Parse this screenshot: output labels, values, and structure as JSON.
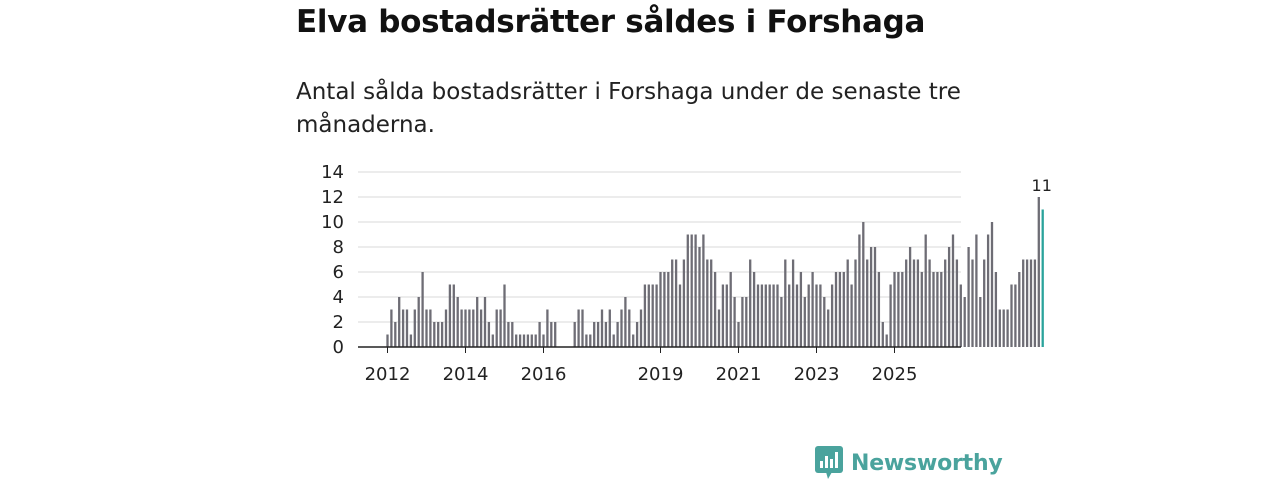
{
  "title": "Elva bostadsrätter såldes i Forshaga",
  "subtitle": "Antal sålda bostadsrätter i Forshaga under de senaste tre månaderna.",
  "brand": {
    "name": "Newsworthy",
    "color": "#4aa39d"
  },
  "chart_data": {
    "type": "bar",
    "title": "",
    "xlabel": "",
    "ylabel": "",
    "ylim": [
      0,
      14
    ],
    "yticks": [
      "0",
      "2",
      "4",
      "6",
      "8",
      "10",
      "12",
      "14"
    ],
    "xticks": [
      {
        "label": "2012",
        "index": 0
      },
      {
        "label": "2014",
        "index": 20
      },
      {
        "label": "2016",
        "index": 40
      },
      {
        "label": "2019",
        "index": 70
      },
      {
        "label": "2021",
        "index": 90
      },
      {
        "label": "2023",
        "index": 110
      },
      {
        "label": "2025",
        "index": 130
      }
    ],
    "colors": {
      "bar": "#6e6d75",
      "highlight": "#2aa39b",
      "grid": "#d9d9d9",
      "axis": "#222222"
    },
    "highlight_label": "11",
    "values": [
      1,
      3,
      2,
      4,
      3,
      3,
      1,
      3,
      4,
      6,
      3,
      3,
      2,
      2,
      2,
      3,
      5,
      5,
      4,
      3,
      3,
      3,
      3,
      4,
      3,
      4,
      2,
      1,
      3,
      3,
      5,
      2,
      2,
      1,
      1,
      1,
      1,
      1,
      1,
      2,
      1,
      3,
      2,
      2,
      0,
      0,
      0,
      0,
      2,
      3,
      3,
      1,
      1,
      2,
      2,
      3,
      2,
      3,
      1,
      2,
      3,
      4,
      3,
      1,
      2,
      3,
      5,
      5,
      5,
      5,
      6,
      6,
      6,
      7,
      7,
      5,
      7,
      9,
      9,
      9,
      8,
      9,
      7,
      7,
      6,
      3,
      5,
      5,
      6,
      4,
      2,
      4,
      4,
      7,
      6,
      5,
      5,
      5,
      5,
      5,
      5,
      4,
      7,
      5,
      7,
      5,
      6,
      4,
      5,
      6,
      5,
      5,
      4,
      3,
      5,
      6,
      6,
      6,
      7,
      5,
      7,
      9,
      10,
      7,
      8,
      8,
      6,
      2,
      1,
      5,
      6,
      6,
      6,
      7,
      8,
      7,
      7,
      6,
      9,
      7,
      6,
      6,
      6,
      7,
      8,
      9,
      7,
      5,
      4,
      8,
      7,
      9,
      4,
      7,
      9,
      10,
      6,
      3,
      3,
      3,
      5,
      5,
      6,
      7,
      7,
      7,
      7,
      12,
      11
    ]
  }
}
